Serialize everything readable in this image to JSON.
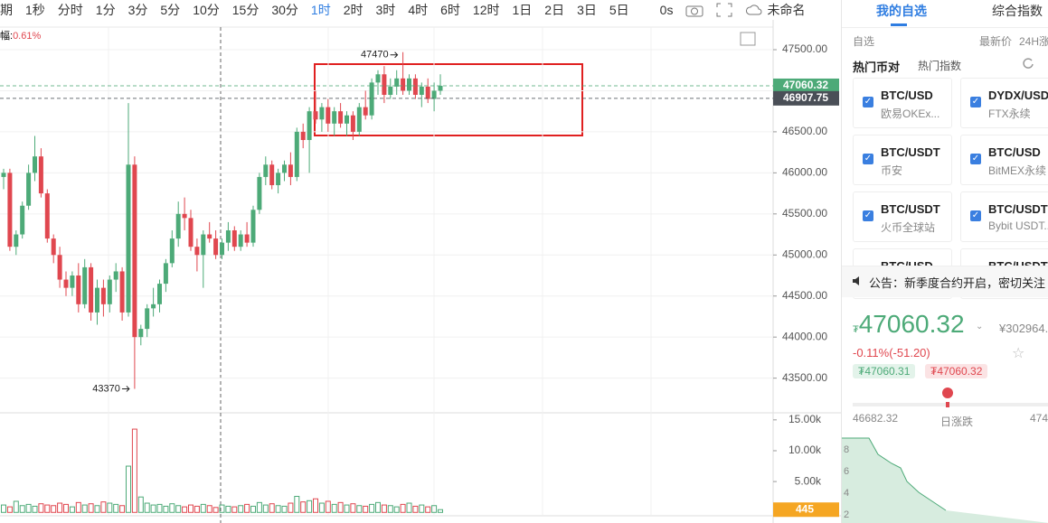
{
  "toolbar": {
    "intervals": [
      "期",
      "1秒",
      "分时",
      "1分",
      "3分",
      "5分",
      "10分",
      "15分",
      "30分",
      "1时",
      "2时",
      "3时",
      "4时",
      "6时",
      "12时",
      "1日",
      "2日",
      "3日",
      "5日"
    ],
    "clock": "0s",
    "layout_name": "未命名"
  },
  "chart_data": {
    "type": "candlestick",
    "change_label": "幅:",
    "change_value": "0.61%",
    "up_color": "#4daa78",
    "down_color": "#e0474f",
    "candles": [
      [
        45950,
        46050,
        45800,
        46000
      ],
      [
        46000,
        46050,
        45050,
        45100
      ],
      [
        45100,
        45300,
        45000,
        45250
      ],
      [
        45250,
        45650,
        45200,
        45600
      ],
      [
        45600,
        46100,
        45550,
        46000
      ],
      [
        46000,
        46450,
        45900,
        46200
      ],
      [
        46200,
        46300,
        45700,
        45750
      ],
      [
        45750,
        45800,
        45150,
        45200
      ],
      [
        45200,
        45250,
        44900,
        45000
      ],
      [
        45000,
        45100,
        44600,
        44700
      ],
      [
        44700,
        44800,
        44500,
        44600
      ],
      [
        44600,
        44800,
        44500,
        44750
      ],
      [
        44750,
        44900,
        44300,
        44400
      ],
      [
        44400,
        44950,
        44350,
        44850
      ],
      [
        44850,
        44900,
        44200,
        44300
      ],
      [
        44300,
        44700,
        44150,
        44600
      ],
      [
        44600,
        44700,
        44250,
        44400
      ],
      [
        44400,
        44750,
        44300,
        44700
      ],
      [
        44700,
        44900,
        44550,
        44800
      ],
      [
        44800,
        44850,
        44200,
        44300
      ],
      [
        44300,
        46850,
        44250,
        46100
      ],
      [
        46100,
        46200,
        43370,
        44000
      ],
      [
        44000,
        44150,
        43900,
        44100
      ],
      [
        44100,
        44400,
        44000,
        44350
      ],
      [
        44350,
        44600,
        44250,
        44400
      ],
      [
        44400,
        44700,
        44300,
        44650
      ],
      [
        44650,
        44950,
        44550,
        44900
      ],
      [
        44900,
        45300,
        44850,
        45200
      ],
      [
        45200,
        45650,
        45100,
        45500
      ],
      [
        45500,
        45700,
        45300,
        45450
      ],
      [
        45450,
        45550,
        45050,
        45100
      ],
      [
        45100,
        45200,
        44800,
        45000
      ],
      [
        45000,
        45300,
        44600,
        45250
      ],
      [
        45250,
        45400,
        45150,
        45200
      ],
      [
        45200,
        45300,
        44950,
        45000
      ],
      [
        45000,
        45200,
        44950,
        45150
      ],
      [
        45150,
        45400,
        45050,
        45300
      ],
      [
        45300,
        45350,
        45050,
        45100
      ],
      [
        45100,
        45300,
        45050,
        45250
      ],
      [
        45250,
        45400,
        45100,
        45150
      ],
      [
        45150,
        45600,
        45100,
        45550
      ],
      [
        45550,
        46000,
        45500,
        45950
      ],
      [
        45950,
        46200,
        45850,
        46100
      ],
      [
        46100,
        46150,
        45800,
        45850
      ],
      [
        45850,
        46050,
        45750,
        46000
      ],
      [
        46000,
        46150,
        45900,
        46100
      ],
      [
        46100,
        46250,
        45850,
        45950
      ],
      [
        45950,
        46550,
        45900,
        46500
      ],
      [
        46500,
        46600,
        46300,
        46400
      ],
      [
        46400,
        46800,
        46000,
        46750
      ],
      [
        46750,
        47000,
        46600,
        46650
      ],
      [
        46650,
        46850,
        46500,
        46800
      ],
      [
        46800,
        46900,
        46500,
        46600
      ],
      [
        46600,
        46800,
        46450,
        46750
      ],
      [
        46750,
        46850,
        46550,
        46600
      ],
      [
        46600,
        46750,
        46450,
        46700
      ],
      [
        46700,
        46750,
        46400,
        46500
      ],
      [
        46500,
        46850,
        46450,
        46800
      ],
      [
        46800,
        47000,
        46650,
        46700
      ],
      [
        46700,
        47150,
        46650,
        47100
      ],
      [
        47100,
        47250,
        46950,
        47200
      ],
      [
        47200,
        47300,
        46850,
        46950
      ],
      [
        46950,
        47150,
        46900,
        47050
      ],
      [
        47050,
        47250,
        46950,
        47150
      ],
      [
        47150,
        47470,
        46950,
        47000
      ],
      [
        47000,
        47200,
        46950,
        47150
      ],
      [
        47150,
        47200,
        46900,
        46950
      ],
      [
        46950,
        47100,
        46800,
        47050
      ],
      [
        47050,
        47150,
        46850,
        46900
      ],
      [
        46900,
        47100,
        46750,
        47000
      ],
      [
        47000,
        47200,
        46950,
        47060.32
      ]
    ],
    "ylim": [
      43100,
      47775
    ],
    "yticks": [
      {
        "value": 47500,
        "label": "47500.00"
      },
      {
        "value": 47000,
        "label": "47000.00"
      },
      {
        "value": 46500,
        "label": "46500.00"
      },
      {
        "value": 46000,
        "label": "46000.00"
      },
      {
        "value": 45500,
        "label": "45500.00"
      },
      {
        "value": 45000,
        "label": "45000.00"
      },
      {
        "value": 44500,
        "label": "44500.00"
      },
      {
        "value": 44000,
        "label": "44000.00"
      },
      {
        "value": 43500,
        "label": "43500.00"
      }
    ],
    "price_lines": [
      {
        "value": 47060.32,
        "color": "#4daa78"
      },
      {
        "value": 46907.75,
        "color": "#4a4f57"
      }
    ],
    "grid": true,
    "volume": {
      "values": [
        1200,
        900,
        1800,
        1100,
        1300,
        1000,
        1400,
        1200,
        1100,
        1500,
        1300,
        900,
        1600,
        1200,
        1400,
        1100,
        1700,
        1500,
        1300,
        1100,
        7500,
        13500,
        2500,
        1500,
        1200,
        1300,
        1000,
        1400,
        1100,
        900,
        1200,
        1000,
        1300,
        1100,
        800,
        1200,
        1000,
        900,
        1100,
        1300,
        1000,
        1600,
        1200,
        1400,
        1100,
        1000,
        1500,
        2600,
        1700,
        1900,
        2200,
        1500,
        1800,
        1300,
        1600,
        1200,
        1400,
        1100,
        1000,
        1300,
        1600,
        1200,
        1100,
        900,
        1300,
        1500,
        1000,
        1200,
        900,
        1100,
        445
      ],
      "ylim": [
        -400,
        16000
      ],
      "yticks": [
        {
          "value": 15000,
          "label": "15.00k"
        },
        {
          "value": 10000,
          "label": "10.00k"
        },
        {
          "value": 5000,
          "label": "5.00k"
        }
      ],
      "last_color": "#f5a623"
    }
  },
  "sidebar": {
    "tabs": [
      "我的自选",
      "综合指数"
    ],
    "columns": [
      "自选",
      "最新价",
      "24H涨"
    ],
    "subtabs": [
      "热门币对",
      "热门指数"
    ],
    "pairs": [
      {
        "symbol": "BTC/USD",
        "exchange": "欧易OKEx..."
      },
      {
        "symbol": "DYDX/USD",
        "exchange": "FTX永续"
      },
      {
        "symbol": "BTC/USDT",
        "exchange": "币安"
      },
      {
        "symbol": "BTC/USD",
        "exchange": "BitMEX永续"
      },
      {
        "symbol": "BTC/USDT",
        "exchange": "火币全球站"
      },
      {
        "symbol": "BTC/USDT",
        "exchange": "Bybit USDT..."
      },
      {
        "symbol": "BTC/USD",
        "exchange": ""
      },
      {
        "symbol": "BTC/USDT",
        "exchange": ""
      }
    ],
    "notice": "公告：新季度合约开启，密切关注",
    "currency": "₮",
    "price": "47060.32",
    "price_cny": "¥302964.",
    "change": "-0.11%(-51.20)",
    "bid": "₮47060.31",
    "ask": "₮47060.32",
    "range_low": "46682.32",
    "range_label": "日涨跌",
    "range_high": "474",
    "depth_ticks": [
      8,
      6,
      4,
      2
    ]
  }
}
